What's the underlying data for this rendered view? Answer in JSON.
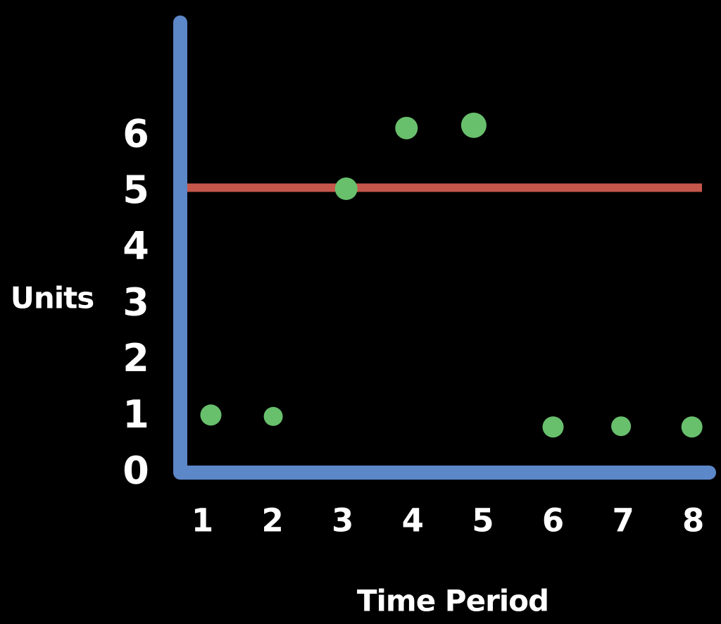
{
  "chart_data": {
    "type": "scatter",
    "title": "",
    "xlabel": "Time Period",
    "ylabel": "Units",
    "x": [
      1,
      2,
      3,
      4,
      5,
      6,
      7,
      8
    ],
    "values": [
      1,
      1,
      5,
      6.1,
      6.2,
      0.8,
      0.8,
      0.8
    ],
    "x_ticks": [
      "1",
      "2",
      "3",
      "4",
      "5",
      "6",
      "7",
      "8"
    ],
    "y_ticks": [
      "0",
      "1",
      "2",
      "3",
      "4",
      "5",
      "6"
    ],
    "xlim": [
      0,
      8.5
    ],
    "ylim": [
      0,
      8
    ],
    "grid": false,
    "legend": "none",
    "reference_line": {
      "value": 5,
      "orientation": "horizontal"
    },
    "colors": {
      "background": "#000000",
      "axis": "#5c87c8",
      "points": "#68bf6c",
      "reference_line": "#c5564b",
      "text": "#ffffff"
    }
  }
}
